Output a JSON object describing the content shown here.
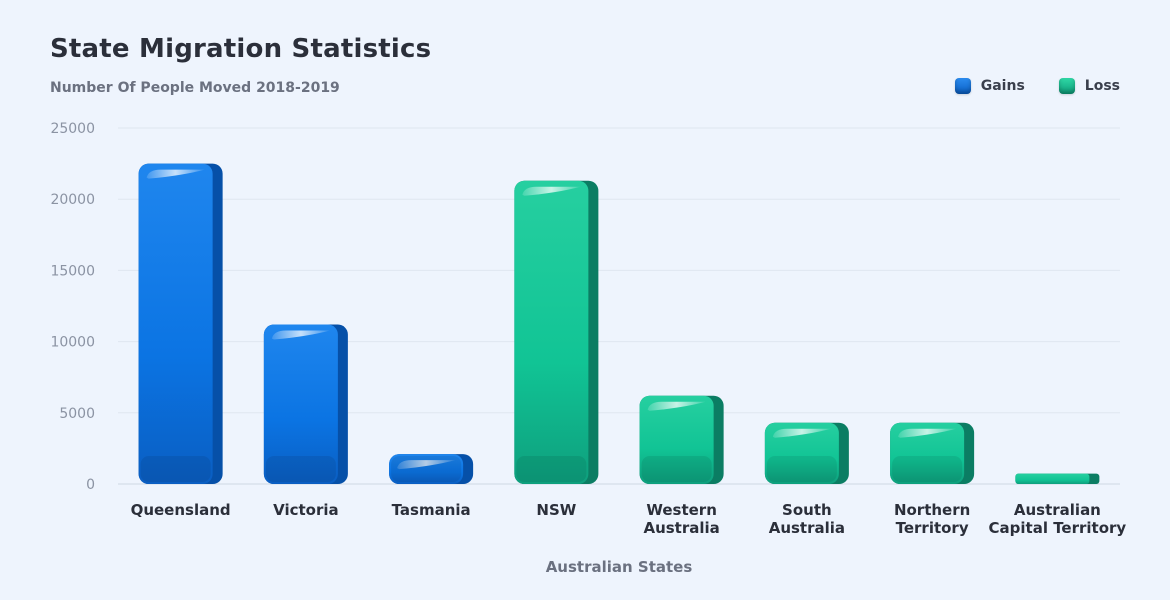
{
  "chart_data": {
    "type": "bar",
    "title": "State Migration Statistics",
    "subtitle": "Number Of People Moved 2018-2019",
    "xlabel": "Australian States",
    "ylabel": "",
    "ylim": [
      0,
      25000
    ],
    "yticks": [
      "0",
      "5000",
      "10000",
      "15000",
      "20000",
      "25000"
    ],
    "grid": true,
    "legend_position": "top-right",
    "legend": [
      {
        "name": "Gains",
        "color": "#0a72de"
      },
      {
        "name": "Loss",
        "color": "#12b98c"
      }
    ],
    "categories": [
      [
        "Queensland"
      ],
      [
        "Victoria"
      ],
      [
        "Tasmania"
      ],
      [
        "NSW"
      ],
      [
        "Western",
        "Australia"
      ],
      [
        "South",
        "Australia"
      ],
      [
        "Northern",
        "Territory"
      ],
      [
        "Australian",
        "Capital Territory"
      ]
    ],
    "values": [
      22500,
      11200,
      2100,
      21300,
      6200,
      4300,
      4300,
      450
    ],
    "groups": [
      "Gains",
      "Gains",
      "Gains",
      "Loss",
      "Loss",
      "Loss",
      "Loss",
      "Loss"
    ]
  }
}
